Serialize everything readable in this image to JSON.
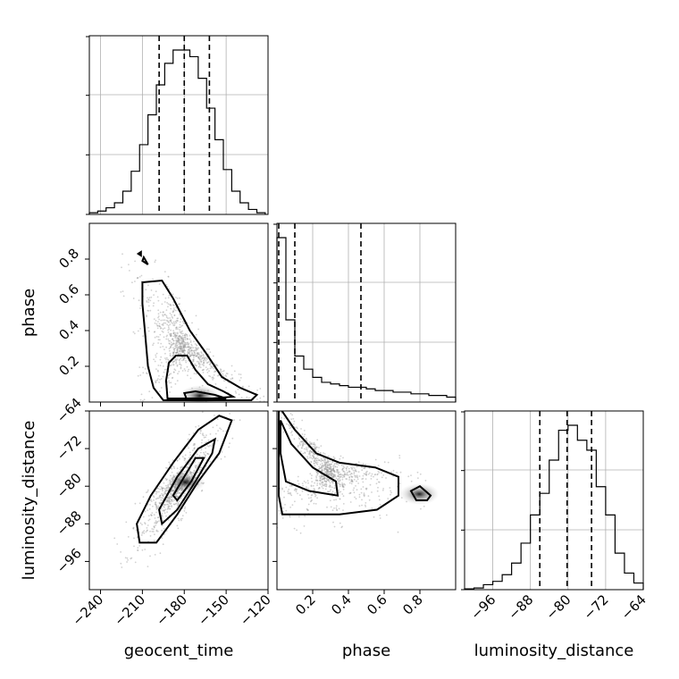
{
  "chart_data": {
    "type": "corner",
    "parameters": [
      {
        "name": "geocent_time",
        "label": "geocent_time",
        "range": [
          -248,
          -120
        ],
        "ticks": [
          -240,
          -210,
          -180,
          -150,
          -120
        ],
        "quantiles": [
          -198,
          -180,
          -162
        ]
      },
      {
        "name": "phase",
        "label": "phase",
        "range": [
          0,
          1.0
        ],
        "ticks": [
          0.2,
          0.4,
          0.6,
          0.8
        ],
        "quantiles": [
          0.01,
          0.1,
          0.47
        ]
      },
      {
        "name": "luminosity_distance",
        "label": "luminosity_distance",
        "range": [
          -102,
          -64
        ],
        "ticks": [
          -96,
          -88,
          -80,
          -72,
          -64
        ],
        "quantiles": [
          -86,
          -80.2,
          -75
        ]
      }
    ],
    "marginals": [
      {
        "parameter": "geocent_time",
        "bin_edges": [
          -248,
          -242,
          -236,
          -230,
          -224,
          -218,
          -212,
          -206,
          -200,
          -194,
          -188,
          -182,
          -176,
          -170,
          -164,
          -158,
          -152,
          -146,
          -140,
          -134,
          -128,
          -122
        ],
        "values": [
          0.01,
          0.02,
          0.04,
          0.07,
          0.14,
          0.26,
          0.42,
          0.6,
          0.78,
          0.91,
          0.99,
          0.99,
          0.95,
          0.82,
          0.64,
          0.45,
          0.27,
          0.14,
          0.07,
          0.03,
          0.01
        ]
      },
      {
        "parameter": "phase",
        "bin_edges": [
          0,
          0.05,
          0.1,
          0.15,
          0.2,
          0.25,
          0.3,
          0.35,
          0.4,
          0.45,
          0.5,
          0.55,
          0.6,
          0.65,
          0.7,
          0.75,
          0.8,
          0.85,
          0.9,
          0.95,
          1.0
        ],
        "values": [
          1.0,
          0.5,
          0.28,
          0.2,
          0.15,
          0.12,
          0.11,
          0.1,
          0.09,
          0.09,
          0.08,
          0.07,
          0.07,
          0.06,
          0.06,
          0.05,
          0.05,
          0.04,
          0.04,
          0.03
        ]
      },
      {
        "parameter": "luminosity_distance",
        "bin_edges": [
          -102,
          -100,
          -98,
          -96,
          -94,
          -92,
          -90,
          -88,
          -86,
          -84,
          -82,
          -80,
          -78,
          -76,
          -74,
          -72,
          -70,
          -68,
          -66,
          -64
        ],
        "values": [
          0.005,
          0.01,
          0.03,
          0.05,
          0.09,
          0.16,
          0.28,
          0.45,
          0.58,
          0.78,
          0.96,
          0.99,
          0.9,
          0.84,
          0.62,
          0.45,
          0.22,
          0.1,
          0.04
        ]
      }
    ],
    "pairs": [
      {
        "x": "geocent_time",
        "y": "phase",
        "contours": [
          [
            [
              -210,
              0.67
            ],
            [
              -196,
              0.68
            ],
            [
              -188,
              0.58
            ],
            [
              -176,
              0.4
            ],
            [
              -165,
              0.28
            ],
            [
              -153,
              0.14
            ],
            [
              -140,
              0.08
            ],
            [
              -128,
              0.04
            ],
            [
              -132,
              0.01
            ],
            [
              -165,
              0.01
            ],
            [
              -195,
              0.01
            ],
            [
              -202,
              0.08
            ],
            [
              -206,
              0.2
            ],
            [
              -208,
              0.38
            ],
            [
              -210,
              0.55
            ],
            [
              -210,
              0.67
            ]
          ],
          [
            [
              -192,
              0.02
            ],
            [
              -193,
              0.12
            ],
            [
              -191,
              0.22
            ],
            [
              -186,
              0.26
            ],
            [
              -178,
              0.26
            ],
            [
              -172,
              0.18
            ],
            [
              -163,
              0.1
            ],
            [
              -152,
              0.06
            ],
            [
              -145,
              0.03
            ],
            [
              -160,
              0.02
            ],
            [
              -192,
              0.02
            ]
          ],
          [
            [
              -180,
              0.05
            ],
            [
              -172,
              0.06
            ],
            [
              -158,
              0.04
            ],
            [
              -150,
              0.02
            ],
            [
              -165,
              0.01
            ],
            [
              -178,
              0.01
            ],
            [
              -180,
              0.05
            ]
          ],
          [
            [
              -213,
              0.83
            ],
            [
              -211,
              0.82
            ],
            [
              -211,
              0.84
            ],
            [
              -213,
              0.83
            ]
          ],
          [
            [
              -210,
              0.79
            ],
            [
              -206,
              0.77
            ],
            [
              -209,
              0.81
            ],
            [
              -210,
              0.79
            ]
          ]
        ]
      },
      {
        "x": "geocent_time",
        "y": "luminosity_distance",
        "contours": [
          [
            [
              -212,
              -92
            ],
            [
              -200,
              -92
            ],
            [
              -185,
              -86
            ],
            [
              -170,
              -79
            ],
            [
              -155,
              -73
            ],
            [
              -146,
              -66
            ],
            [
              -155,
              -65
            ],
            [
              -170,
              -68
            ],
            [
              -188,
              -75
            ],
            [
              -204,
              -82
            ],
            [
              -214,
              -88
            ],
            [
              -212,
              -92
            ]
          ],
          [
            [
              -196,
              -88
            ],
            [
              -185,
              -85
            ],
            [
              -172,
              -79
            ],
            [
              -160,
              -73
            ],
            [
              -158,
              -70
            ],
            [
              -170,
              -72
            ],
            [
              -185,
              -78
            ],
            [
              -198,
              -85
            ],
            [
              -196,
              -88
            ]
          ],
          [
            [
              -185,
              -83
            ],
            [
              -175,
              -79
            ],
            [
              -166,
              -74
            ],
            [
              -172,
              -74
            ],
            [
              -182,
              -79
            ],
            [
              -188,
              -82
            ],
            [
              -185,
              -83
            ]
          ]
        ]
      },
      {
        "x": "phase",
        "y": "luminosity_distance",
        "contours": [
          [
            [
              0.01,
              -63
            ],
            [
              0.1,
              -68
            ],
            [
              0.22,
              -73
            ],
            [
              0.35,
              -75
            ],
            [
              0.55,
              -76
            ],
            [
              0.68,
              -78
            ],
            [
              0.68,
              -82
            ],
            [
              0.56,
              -85
            ],
            [
              0.35,
              -86
            ],
            [
              0.15,
              -86
            ],
            [
              0.03,
              -86
            ],
            [
              0.01,
              -82
            ],
            [
              0.01,
              -63
            ]
          ],
          [
            [
              0.02,
              -66
            ],
            [
              0.08,
              -71
            ],
            [
              0.2,
              -76
            ],
            [
              0.33,
              -79
            ],
            [
              0.34,
              -82
            ],
            [
              0.18,
              -81
            ],
            [
              0.05,
              -79
            ],
            [
              0.02,
              -73
            ],
            [
              0.02,
              -66
            ]
          ],
          [
            [
              0.75,
              -81
            ],
            [
              0.8,
              -80
            ],
            [
              0.86,
              -82
            ],
            [
              0.84,
              -83
            ],
            [
              0.78,
              -83
            ],
            [
              0.75,
              -81
            ]
          ]
        ]
      }
    ],
    "grid": true
  }
}
